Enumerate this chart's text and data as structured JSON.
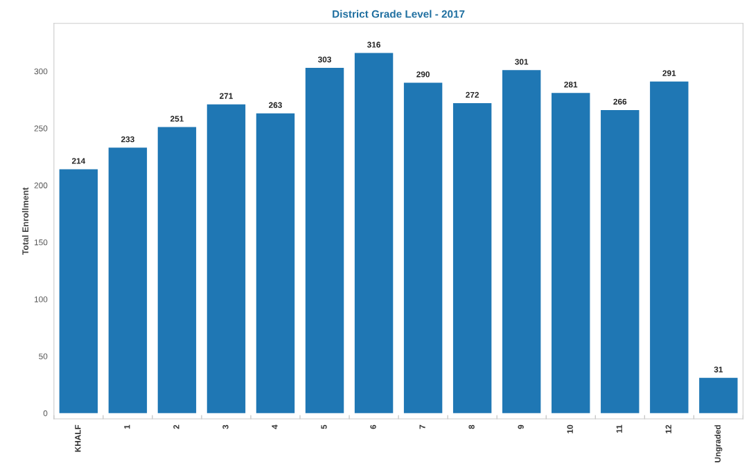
{
  "chart_data": {
    "type": "bar",
    "title": "District Grade Level - 2017",
    "ylabel": "Total Enrollment",
    "categories": [
      "KHALF",
      "1",
      "2",
      "3",
      "4",
      "5",
      "6",
      "7",
      "8",
      "9",
      "10",
      "11",
      "12",
      "Ungraded"
    ],
    "values": [
      214,
      233,
      251,
      271,
      263,
      303,
      316,
      290,
      272,
      301,
      281,
      266,
      291,
      31
    ],
    "color": "#1f77b4",
    "ylim": [
      -5,
      342
    ],
    "yticks": [
      0,
      50,
      100,
      150,
      200,
      250,
      300
    ],
    "data_labels": true,
    "grid": false
  }
}
